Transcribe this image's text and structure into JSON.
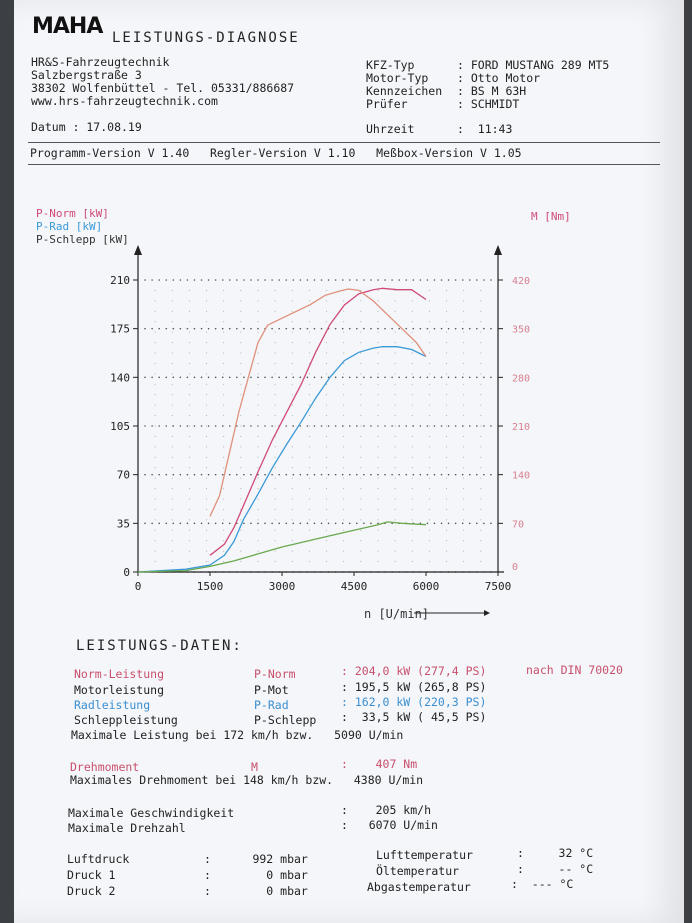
{
  "header": {
    "logo": "MAHA",
    "title": "LEISTUNGS-DIAGNOSE",
    "company": [
      "HR&S-Fahrzeugtechnik",
      "Salzbergstraße 3",
      "38302 Wolfenbüttel - Tel. 05331/886687",
      "www.hrs-fahrzeugtechnik.com"
    ],
    "datum_label": "Datum : 17.08.19",
    "vehicle_labels": [
      "KFZ-Typ",
      "Motor-Typ",
      "Kennzeichen",
      "Prüfer"
    ],
    "vehicle_values": [
      ": FORD MUSTANG 289 MT5",
      ": Otto Motor",
      ": BS M 63H",
      ": SCHMIDT"
    ],
    "uhrzeit_label": "Uhrzeit",
    "uhrzeit_value": ":  11:43",
    "versions": "Programm-Version V 1.40   Regler-Version V 1.10   Meßbox-Version V 1.05"
  },
  "chart_data": {
    "type": "line",
    "legend": [
      "P-Norm  [kW]",
      "P-Rad   [kW]",
      "P-Schlepp [kW]"
    ],
    "right_legend": "M      [Nm]",
    "xlabel": "n [U/min]",
    "x_ticks": [
      "0",
      "1500",
      "3000",
      "4500",
      "6000",
      "7500"
    ],
    "y_ticks": [
      "0",
      "35",
      "70",
      "105",
      "140",
      "175",
      "210"
    ],
    "y2_ticks": [
      "0",
      "70",
      "140",
      "210",
      "280",
      "350",
      "420"
    ],
    "xlim": [
      0,
      7500
    ],
    "ylim": [
      0,
      210
    ],
    "y2lim": [
      0,
      420
    ],
    "colors": {
      "norm": "#d04a78",
      "rad": "#3a9ad8",
      "schlepp": "#6aa84f",
      "torque": "#e0907a"
    },
    "series": [
      {
        "name": "P-Norm",
        "axis": "left",
        "color": "#d04a78",
        "x": [
          1500,
          1800,
          2000,
          2200,
          2500,
          2800,
          3100,
          3400,
          3700,
          4000,
          4300,
          4600,
          4900,
          5090,
          5400,
          5700,
          6000
        ],
        "y": [
          12,
          20,
          32,
          48,
          72,
          95,
          115,
          135,
          158,
          178,
          192,
          200,
          203,
          204,
          203,
          203,
          196
        ]
      },
      {
        "name": "P-Rad",
        "axis": "left",
        "color": "#3a9ad8",
        "x": [
          0,
          1000,
          1500,
          1800,
          2000,
          2200,
          2500,
          2800,
          3100,
          3400,
          3700,
          4000,
          4300,
          4600,
          4900,
          5090,
          5400,
          5700,
          6000
        ],
        "y": [
          0,
          2,
          5,
          12,
          22,
          38,
          56,
          75,
          92,
          108,
          125,
          140,
          152,
          158,
          161,
          162,
          162,
          160,
          155
        ]
      },
      {
        "name": "P-Schlepp",
        "axis": "left",
        "color": "#6aa84f",
        "x": [
          0,
          1000,
          1500,
          2000,
          2500,
          3000,
          3500,
          4000,
          4500,
          5000,
          5200,
          5500,
          6000
        ],
        "y": [
          0,
          1,
          4,
          8,
          13,
          18,
          22,
          26,
          30,
          34,
          36,
          35,
          34
        ]
      },
      {
        "name": "M",
        "axis": "right",
        "color": "#e0907a",
        "x": [
          1500,
          1700,
          1900,
          2100,
          2300,
          2500,
          2700,
          3000,
          3300,
          3600,
          3900,
          4200,
          4380,
          4600,
          4900,
          5200,
          5500,
          5800,
          6000
        ],
        "y": [
          80,
          110,
          170,
          230,
          280,
          330,
          355,
          365,
          375,
          385,
          398,
          404,
          407,
          405,
          390,
          370,
          350,
          330,
          310
        ]
      }
    ]
  },
  "leistung": {
    "title": "LEISTUNGS-DATEN:",
    "rows": [
      {
        "name": "Norm-Leistung",
        "sym": "P-Norm",
        "val": ": 204,0 kW (277,4 PS)",
        "extra": "nach DIN 70020",
        "color": "red"
      },
      {
        "name": "Motorleistung",
        "sym": "P-Mot",
        "val": ": 195,5 kW (265,8 PS)",
        "extra": "",
        "color": ""
      },
      {
        "name": "Radleistung",
        "sym": "P-Rad",
        "val": ": 162,0 kW (220,3 PS)",
        "extra": "",
        "color": "blue"
      },
      {
        "name": "Schleppleistung",
        "sym": "P-Schlepp",
        "val": ":  33,5 kW ( 45,5 PS)",
        "extra": "",
        "color": ""
      }
    ],
    "max_line": "Maximale Leistung bei 172 km/h bzw.   5090 U/min",
    "drehmoment_name": "Drehmoment",
    "drehmoment_sym": "M",
    "drehmoment_val": ":    407 Nm",
    "max_dreh_line": "Maximales Drehmoment bei 148 km/h bzw.   4380 U/min",
    "speed_label": "Maximale Geschwindigkeit",
    "speed_val": ":    205 km/h",
    "rpm_label": "Maximale Drehzahl",
    "rpm_val": ":   6070 U/min"
  },
  "ambient": {
    "left": [
      {
        "label": "Luftdruck",
        "val": ":      992 mbar"
      },
      {
        "label": "Druck 1",
        "val": ":        0 mbar"
      },
      {
        "label": "Druck 2",
        "val": ":        0 mbar"
      }
    ],
    "right": [
      {
        "label": "Lufttemperatur",
        "val": ":     32 °C"
      },
      {
        "label": "Öltemperatur",
        "val": ":     -- °C"
      },
      {
        "label": "Abgastemperatur",
        "val": ":  --- °C"
      }
    ]
  }
}
